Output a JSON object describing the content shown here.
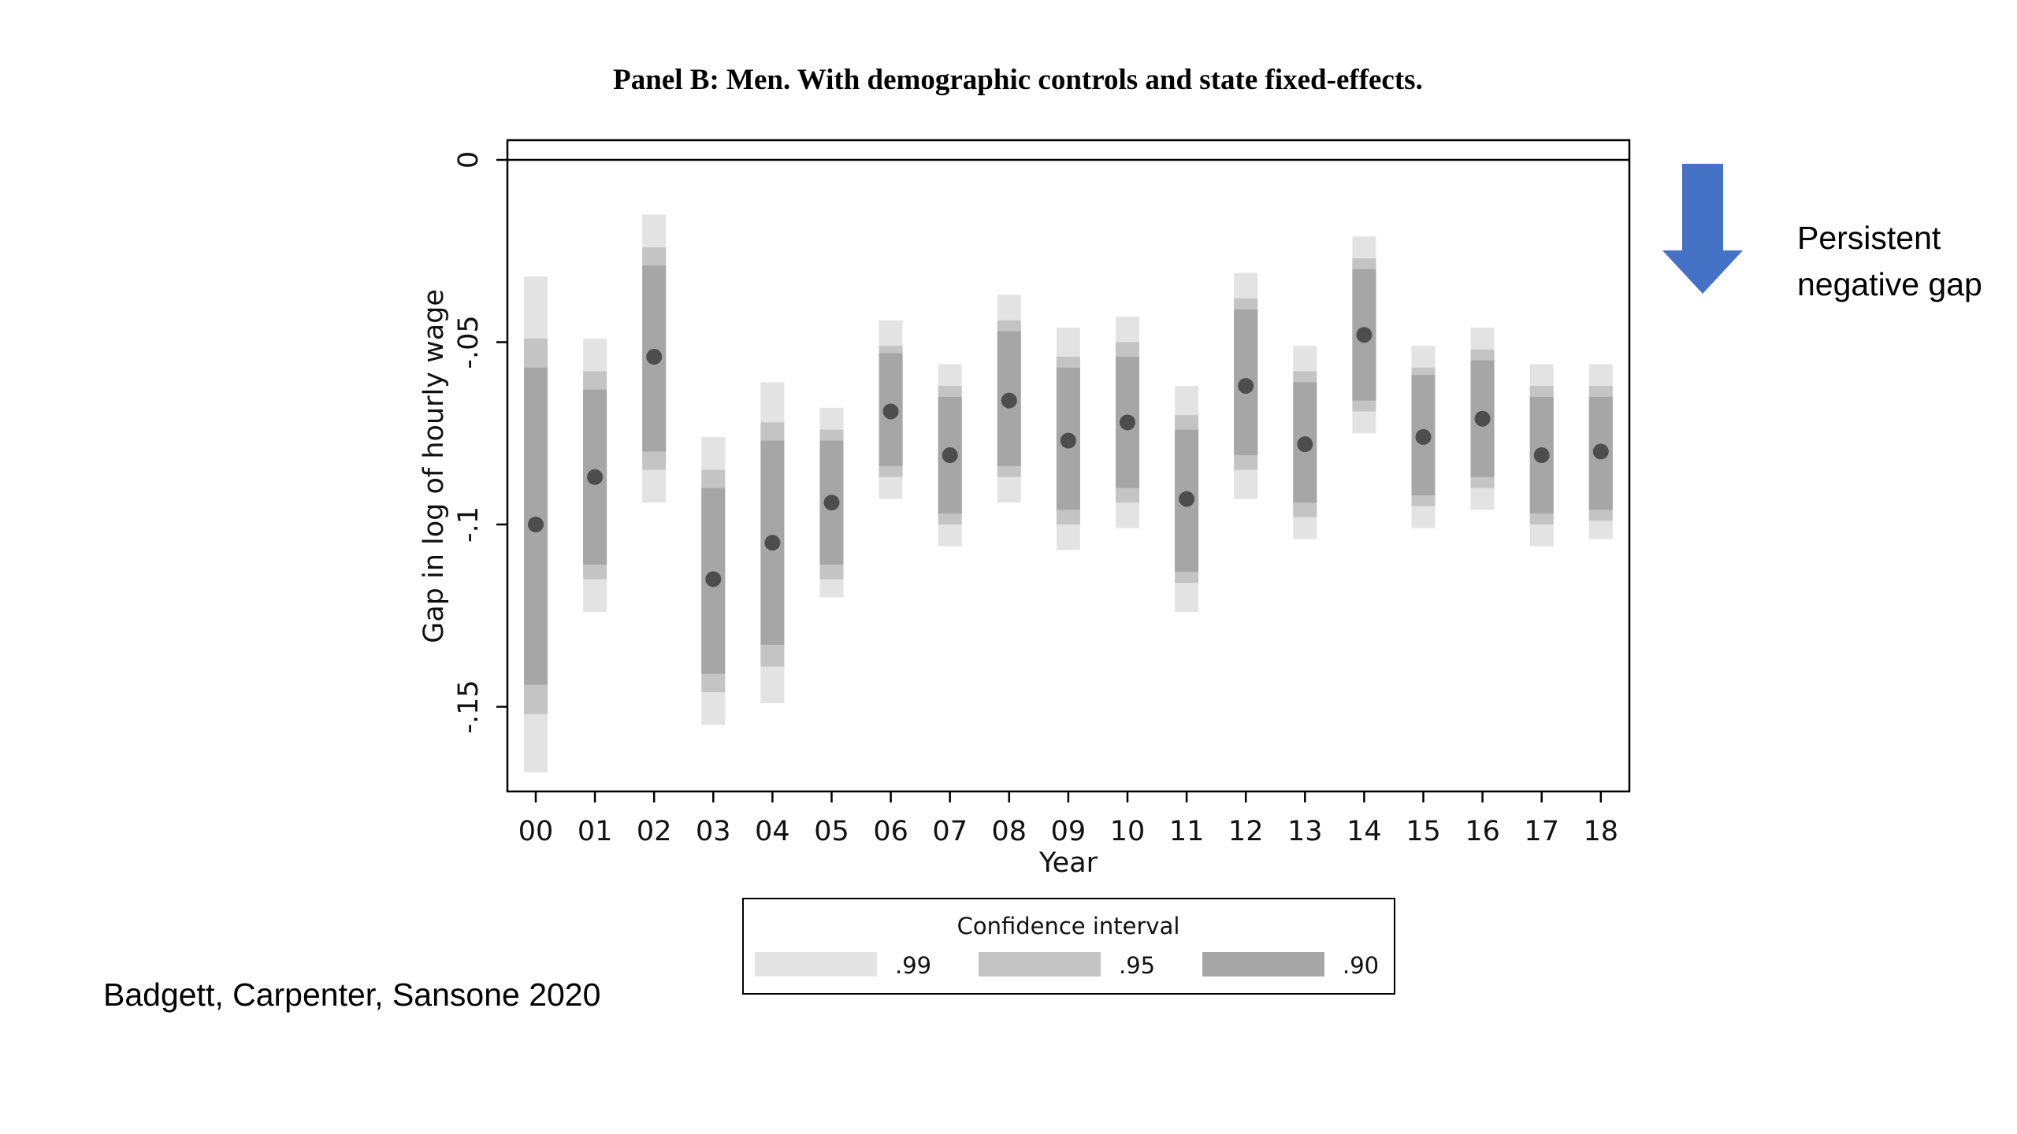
{
  "slide": {
    "annotation_line1": "Persistent",
    "annotation_line2": "negative gap",
    "citation": "Badgett, Carpenter, Sansone 2020",
    "arrow_icon": "down-arrow-icon",
    "arrow_color": "#4472C4"
  },
  "chart_data": {
    "type": "errorbar",
    "title": "Panel B: Men. With demographic controls and state fixed-effects.",
    "xlabel": "Year",
    "ylabel": "Gap in log of hourly wage",
    "ylim": [
      -0.175,
      0.005
    ],
    "yticks": [
      0,
      -0.05,
      -0.1,
      -0.15
    ],
    "ytick_labels": [
      "0",
      "-.05",
      "-.1",
      "-.15"
    ],
    "reference_line": 0,
    "categories": [
      "00",
      "01",
      "02",
      "03",
      "04",
      "05",
      "06",
      "07",
      "08",
      "09",
      "10",
      "11",
      "12",
      "13",
      "14",
      "15",
      "16",
      "17",
      "18"
    ],
    "point_estimates": [
      -0.1,
      -0.087,
      -0.054,
      -0.115,
      -0.105,
      -0.094,
      -0.069,
      -0.081,
      -0.066,
      -0.077,
      -0.072,
      -0.093,
      -0.062,
      -0.078,
      -0.048,
      -0.076,
      -0.071,
      -0.081,
      -0.08
    ],
    "ci90": [
      [
        -0.144,
        -0.057
      ],
      [
        -0.111,
        -0.063
      ],
      [
        -0.08,
        -0.029
      ],
      [
        -0.141,
        -0.09
      ],
      [
        -0.133,
        -0.077
      ],
      [
        -0.111,
        -0.077
      ],
      [
        -0.084,
        -0.053
      ],
      [
        -0.097,
        -0.065
      ],
      [
        -0.084,
        -0.047
      ],
      [
        -0.096,
        -0.057
      ],
      [
        -0.09,
        -0.054
      ],
      [
        -0.113,
        -0.074
      ],
      [
        -0.081,
        -0.041
      ],
      [
        -0.094,
        -0.061
      ],
      [
        -0.066,
        -0.03
      ],
      [
        -0.092,
        -0.059
      ],
      [
        -0.087,
        -0.055
      ],
      [
        -0.097,
        -0.065
      ],
      [
        -0.096,
        -0.065
      ]
    ],
    "ci95": [
      [
        -0.152,
        -0.049
      ],
      [
        -0.115,
        -0.058
      ],
      [
        -0.085,
        -0.024
      ],
      [
        -0.146,
        -0.085
      ],
      [
        -0.139,
        -0.072
      ],
      [
        -0.115,
        -0.074
      ],
      [
        -0.087,
        -0.051
      ],
      [
        -0.1,
        -0.062
      ],
      [
        -0.087,
        -0.044
      ],
      [
        -0.1,
        -0.054
      ],
      [
        -0.094,
        -0.05
      ],
      [
        -0.116,
        -0.07
      ],
      [
        -0.085,
        -0.038
      ],
      [
        -0.098,
        -0.058
      ],
      [
        -0.069,
        -0.027
      ],
      [
        -0.095,
        -0.057
      ],
      [
        -0.09,
        -0.052
      ],
      [
        -0.1,
        -0.062
      ],
      [
        -0.099,
        -0.062
      ]
    ],
    "ci99": [
      [
        -0.168,
        -0.032
      ],
      [
        -0.124,
        -0.049
      ],
      [
        -0.094,
        -0.015
      ],
      [
        -0.155,
        -0.076
      ],
      [
        -0.149,
        -0.061
      ],
      [
        -0.12,
        -0.068
      ],
      [
        -0.093,
        -0.044
      ],
      [
        -0.106,
        -0.056
      ],
      [
        -0.094,
        -0.037
      ],
      [
        -0.107,
        -0.046
      ],
      [
        -0.101,
        -0.043
      ],
      [
        -0.124,
        -0.062
      ],
      [
        -0.093,
        -0.031
      ],
      [
        -0.104,
        -0.051
      ],
      [
        -0.075,
        -0.021
      ],
      [
        -0.101,
        -0.051
      ],
      [
        -0.096,
        -0.046
      ],
      [
        -0.106,
        -0.056
      ],
      [
        -0.104,
        -0.056
      ]
    ],
    "legend": {
      "title": "Confidence interval",
      "placement": "bottom",
      "entries": [
        {
          "label": ".99",
          "color": "#e3e3e3"
        },
        {
          "label": ".95",
          "color": "#c4c4c4"
        },
        {
          "label": ".90",
          "color": "#a6a6a6"
        }
      ]
    },
    "marker_color": "#4d4d4d"
  }
}
